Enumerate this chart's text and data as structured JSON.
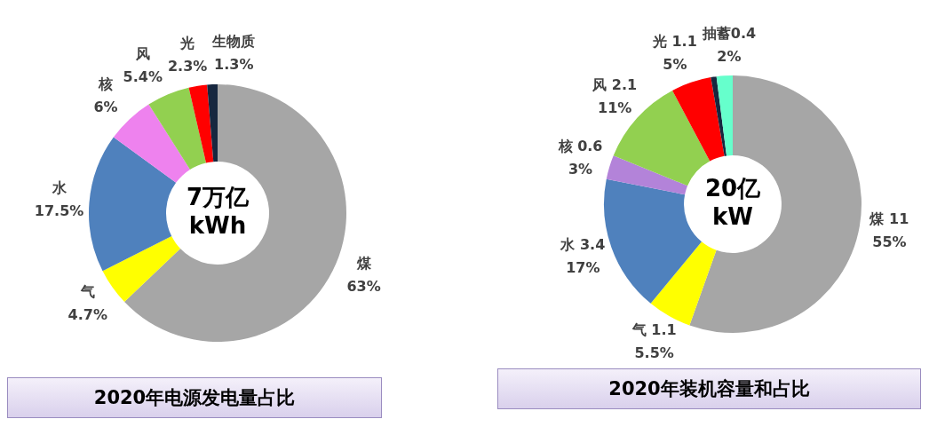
{
  "chart_data": [
    {
      "type": "donut",
      "title": "2020年电源发电量占比",
      "categories": [
        "煤",
        "气",
        "水",
        "核",
        "风",
        "光",
        "生物质"
      ],
      "values": [
        63,
        4.7,
        17.5,
        6,
        5.4,
        2.3,
        1.3
      ],
      "value_labels": [
        "63%",
        "4.7%",
        "17.5%",
        "6%",
        "5.4%",
        "2.3%",
        "1.3%"
      ],
      "colors": [
        "#a6a6a6",
        "#ffff00",
        "#4f81bd",
        "#ee82ee",
        "#92d050",
        "#ff0000",
        "#17273f"
      ],
      "annotations": [
        "7万亿\nkWh"
      ],
      "legend": false
    },
    {
      "type": "donut",
      "title": "2020年装机容量和占比",
      "categories": [
        "煤 11",
        "气 1.1",
        "水 3.4",
        "核 0.6",
        "风 2.1",
        "光 1.1",
        null,
        "抽蓄0.4"
      ],
      "values": [
        55,
        5.5,
        17,
        3,
        11,
        5,
        0.7,
        2
      ],
      "value_labels": [
        "55%",
        "5.5%",
        "17%",
        "3%",
        "11%",
        "5%",
        null,
        "2%"
      ],
      "colors": [
        "#a6a6a6",
        "#ffff00",
        "#4f81bd",
        "#b383d9",
        "#92d050",
        "#ff0000",
        "#17273f",
        "#66ffcc"
      ],
      "annotations": [
        "20亿\nkW"
      ],
      "legend": false
    }
  ]
}
